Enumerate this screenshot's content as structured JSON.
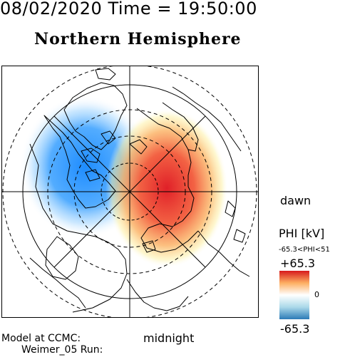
{
  "header": {
    "date_time": "08/02/2020 Time = 19:50:00",
    "title": "Northern Hemisphere"
  },
  "map": {
    "orientation_labels": {
      "right": "dawn",
      "bottom": "midnight"
    },
    "potential_pattern": {
      "negative_cell": {
        "description_color": "#1e8cff",
        "side": "dusk"
      },
      "positive_cell": {
        "description_color": "#e8202a",
        "side": "dawn"
      }
    }
  },
  "colorbar": {
    "title": "PHI [kV]",
    "range_text": "-65.3<PHI<51",
    "max_label": "+65.3",
    "zero_label": "0",
    "min_label": "-65.3",
    "colors": {
      "high": "#d7191c",
      "mid_high": "#fdae61",
      "center": "#ffffff",
      "mid_low": "#abd9e9",
      "low": "#2c7bb6"
    }
  },
  "footer": {
    "model_line1": "Model at CCMC:",
    "model_line2": "Weimer_05 Run:"
  }
}
